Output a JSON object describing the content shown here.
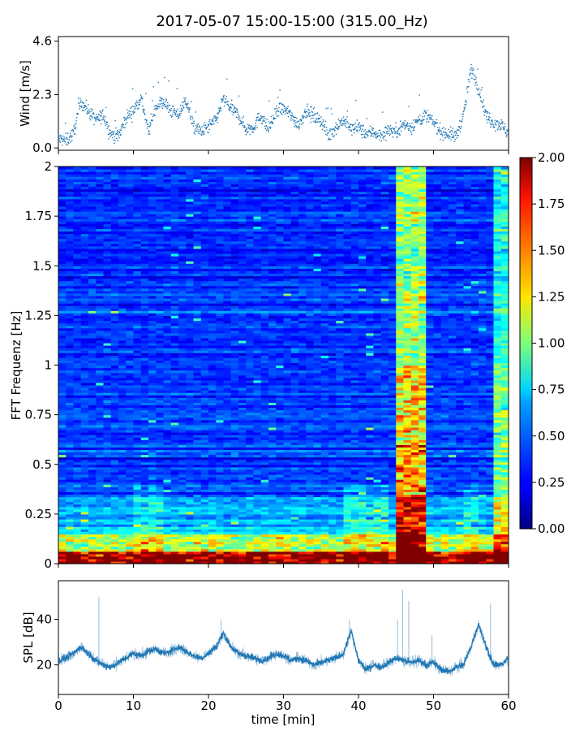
{
  "figure": {
    "title": "2017-05-07 15:00-15:00 (315.00_Hz)"
  },
  "chart_data": [
    {
      "type": "scatter",
      "name": "wind",
      "ylabel": "Wind [m/s]",
      "ylim": [
        -0.1,
        4.8
      ],
      "yticks": [
        0.0,
        2.3,
        4.6
      ],
      "ytick_labels": [
        "0.0",
        "2.3",
        "4.6"
      ],
      "xlim": [
        0,
        60
      ],
      "color": "#1f77b4",
      "keypoints_x": [
        0,
        1,
        2,
        3,
        4,
        5,
        6,
        7,
        8,
        9,
        10,
        11,
        12,
        13,
        14,
        15,
        16,
        17,
        18,
        19,
        20,
        21,
        22,
        23,
        24,
        25,
        26,
        27,
        28,
        29,
        30,
        31,
        32,
        33,
        34,
        35,
        36,
        37,
        38,
        39,
        40,
        41,
        42,
        43,
        44,
        45,
        46,
        47,
        48,
        49,
        50,
        51,
        52,
        53,
        54,
        55,
        56,
        57,
        58,
        59,
        60
      ],
      "keypoints_y": [
        0.4,
        0.3,
        0.6,
        2.0,
        1.6,
        1.2,
        1.4,
        0.6,
        0.5,
        1.3,
        1.6,
        2.2,
        0.7,
        1.8,
        2.0,
        1.6,
        1.4,
        2.1,
        0.9,
        0.7,
        0.9,
        1.2,
        2.1,
        1.7,
        1.4,
        0.8,
        0.9,
        1.4,
        0.8,
        1.5,
        1.7,
        1.4,
        1.0,
        1.6,
        1.4,
        1.2,
        0.5,
        0.9,
        1.2,
        0.8,
        0.9,
        0.6,
        0.7,
        0.5,
        0.8,
        0.7,
        1.0,
        0.9,
        1.2,
        1.4,
        1.1,
        0.7,
        0.6,
        0.5,
        1.4,
        3.4,
        2.6,
        1.4,
        1.1,
        1.0,
        0.6
      ]
    },
    {
      "type": "heatmap",
      "name": "spectrogram",
      "ylabel": "FFT Frequenz [Hz]",
      "ylim": [
        0,
        2
      ],
      "xlim": [
        0,
        60
      ],
      "yticks": [
        0,
        0.25,
        0.5,
        0.75,
        1,
        1.25,
        1.5,
        1.75,
        2
      ],
      "ytick_labels": [
        "0",
        "0.25",
        "0.5",
        "0.75",
        "1",
        "1.25",
        "1.5",
        "1.75",
        "2"
      ],
      "colormap": "jet",
      "colorbar": {
        "vmin": 0.0,
        "vmax": 2.0,
        "ticks": [
          0.0,
          0.25,
          0.5,
          0.75,
          1.0,
          1.25,
          1.5,
          1.75,
          2.0
        ],
        "tick_labels": [
          "0.00",
          "0.25",
          "0.50",
          "0.75",
          "1.00",
          "1.25",
          "1.50",
          "1.75",
          "2.00"
        ]
      },
      "hot_columns_min": [
        [
          45.5,
          49.0
        ],
        [
          58.0,
          60.0
        ]
      ],
      "background_level": 0.15
    },
    {
      "type": "line",
      "name": "spl",
      "ylabel": "SPL [dB]",
      "xlabel": "time [min]",
      "xlim": [
        0,
        60
      ],
      "ylim": [
        7,
        57
      ],
      "yticks": [
        20,
        40
      ],
      "ytick_labels": [
        "20",
        "40"
      ],
      "xticks": [
        0,
        10,
        20,
        30,
        40,
        50,
        60
      ],
      "xtick_labels": [
        "0",
        "10",
        "20",
        "30",
        "40",
        "50",
        "60"
      ],
      "color": "#1f77b4",
      "x": [
        0,
        1,
        2,
        3,
        4,
        5,
        6,
        7,
        8,
        9,
        10,
        11,
        12,
        13,
        14,
        15,
        16,
        17,
        18,
        19,
        20,
        21,
        22,
        23,
        24,
        25,
        26,
        27,
        28,
        29,
        30,
        31,
        32,
        33,
        34,
        35,
        36,
        37,
        38,
        39,
        40,
        41,
        42,
        43,
        44,
        45,
        46,
        47,
        48,
        49,
        50,
        51,
        52,
        53,
        54,
        55,
        56,
        57,
        58,
        59,
        60
      ],
      "y": [
        22,
        23,
        25,
        28,
        25,
        22,
        20,
        19,
        21,
        23,
        25,
        24,
        26,
        27,
        25,
        26,
        28,
        26,
        24,
        23,
        25,
        28,
        34,
        28,
        25,
        24,
        23,
        22,
        23,
        25,
        24,
        22,
        23,
        22,
        20,
        21,
        22,
        23,
        25,
        35,
        22,
        18,
        20,
        19,
        21,
        23,
        22,
        21,
        22,
        20,
        21,
        18,
        17,
        19,
        20,
        28,
        38,
        28,
        20,
        20,
        23
      ],
      "spikes": [
        [
          5.4,
          50
        ],
        [
          21.7,
          40
        ],
        [
          38.8,
          40
        ],
        [
          45.2,
          40
        ],
        [
          45.9,
          53
        ],
        [
          46.7,
          48
        ],
        [
          49.8,
          33
        ],
        [
          57.6,
          47
        ]
      ]
    }
  ]
}
